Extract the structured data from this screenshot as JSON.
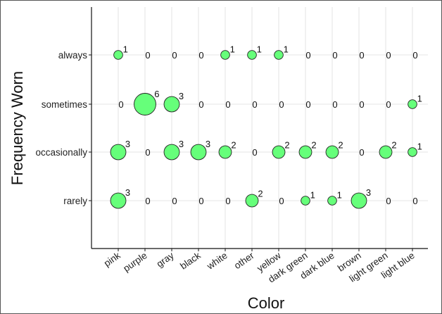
{
  "chart_data": {
    "type": "scatter",
    "subtype": "bubble",
    "xlabel": "Color",
    "ylabel": "Frequency Worn",
    "x_categories": [
      "pink",
      "purple",
      "gray",
      "black",
      "white",
      "other",
      "yellow",
      "dark green",
      "dark blue",
      "brown",
      "light green",
      "light blue"
    ],
    "y_categories": [
      "always",
      "sometimes",
      "occasionally",
      "rarely"
    ],
    "counts": {
      "always": [
        1,
        0,
        0,
        0,
        1,
        1,
        1,
        0,
        0,
        0,
        0,
        0
      ],
      "sometimes": [
        0,
        6,
        3,
        0,
        0,
        0,
        0,
        0,
        0,
        0,
        0,
        1
      ],
      "occasionally": [
        3,
        0,
        3,
        3,
        2,
        0,
        2,
        2,
        2,
        0,
        2,
        1
      ],
      "rarely": [
        3,
        0,
        0,
        0,
        0,
        2,
        0,
        1,
        1,
        3,
        0,
        0
      ]
    },
    "bubble_color": "#66ff7a",
    "grid": true,
    "legend": "none"
  }
}
